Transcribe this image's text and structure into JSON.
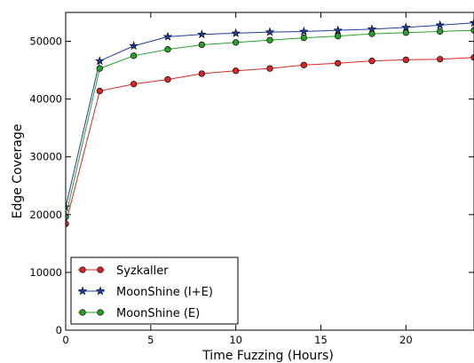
{
  "chart_data": {
    "type": "line",
    "title": "",
    "xlabel": "Time Fuzzing (Hours)",
    "ylabel": "Edge Coverage",
    "xlim": [
      0,
      24
    ],
    "ylim": [
      0,
      55000
    ],
    "x_ticks": [
      0,
      5,
      10,
      15,
      20
    ],
    "y_ticks": [
      0,
      10000,
      20000,
      30000,
      40000,
      50000
    ],
    "grid": false,
    "legend_position": "lower-left",
    "series": [
      {
        "name": "Syzkaller",
        "color": "#d62728",
        "marker": "circle",
        "x": [
          0,
          2,
          4,
          6,
          8,
          10,
          12,
          14,
          16,
          18,
          20,
          22,
          24
        ],
        "y": [
          18400,
          41400,
          42600,
          43400,
          44400,
          44900,
          45300,
          45900,
          46200,
          46600,
          46800,
          46900,
          47200
        ]
      },
      {
        "name": "MoonShine (I+E)",
        "color": "#1f3c9e",
        "marker": "star",
        "x": [
          0,
          2,
          4,
          6,
          8,
          10,
          12,
          14,
          16,
          18,
          20,
          22,
          24
        ],
        "y": [
          21300,
          46600,
          49200,
          50800,
          51200,
          51400,
          51600,
          51700,
          51900,
          52100,
          52400,
          52800,
          53200
        ]
      },
      {
        "name": "MoonShine (E)",
        "color": "#2ca02c",
        "marker": "circle",
        "x": [
          0,
          2,
          4,
          6,
          8,
          10,
          12,
          14,
          16,
          18,
          20,
          22,
          24
        ],
        "y": [
          19600,
          45300,
          47500,
          48600,
          49400,
          49800,
          50200,
          50600,
          50900,
          51300,
          51500,
          51700,
          51900
        ]
      }
    ]
  }
}
